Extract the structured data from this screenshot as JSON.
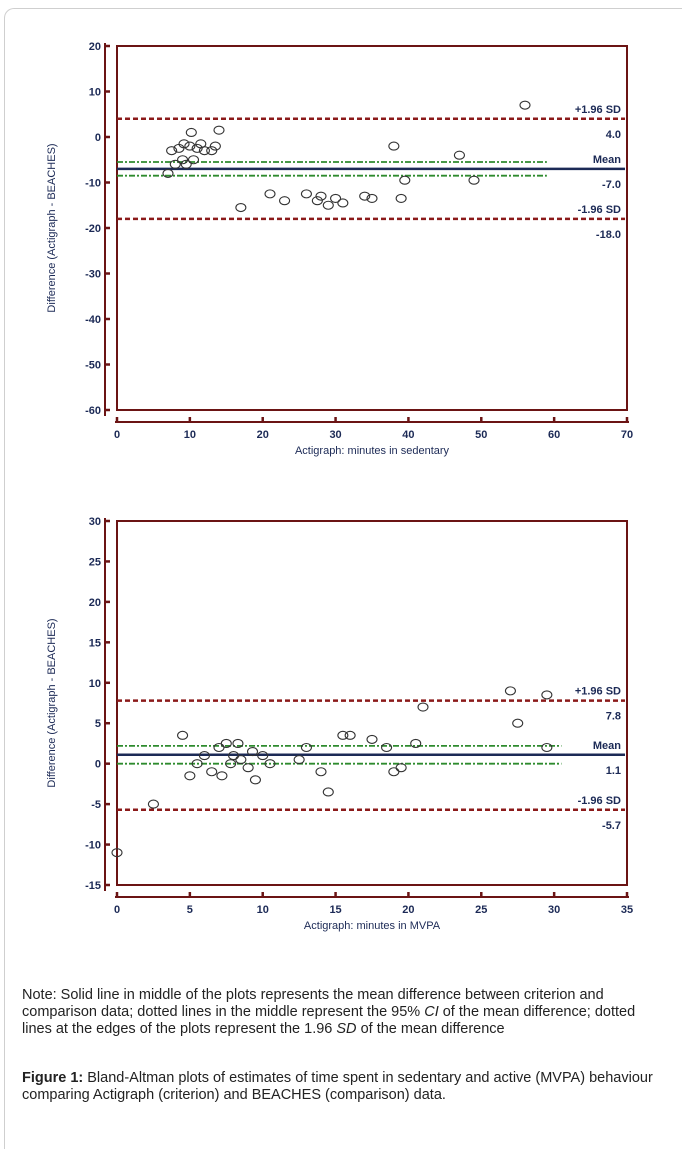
{
  "chart_data": [
    {
      "type": "scatter",
      "title": "",
      "xlabel": "Actigraph: minutes in sedentary",
      "ylabel": "Difference (Actigraph - BEACHES)",
      "xlim": [
        0,
        70
      ],
      "ylim": [
        -60,
        20
      ],
      "xticks": [
        0,
        10,
        20,
        30,
        40,
        50,
        60,
        70
      ],
      "yticks": [
        20,
        10,
        0,
        -10,
        -20,
        -30,
        -40,
        -50,
        -60
      ],
      "grid": false,
      "points": [
        [
          7,
          -8
        ],
        [
          7.5,
          -3
        ],
        [
          8,
          -6
        ],
        [
          8.5,
          -2.5
        ],
        [
          9,
          -5
        ],
        [
          9.2,
          -1.5
        ],
        [
          9.5,
          -6
        ],
        [
          10,
          -2
        ],
        [
          10.2,
          1
        ],
        [
          10.5,
          -5
        ],
        [
          11,
          -2.5
        ],
        [
          11.5,
          -1.5
        ],
        [
          12,
          -3
        ],
        [
          13,
          -3
        ],
        [
          13.5,
          -2
        ],
        [
          14,
          1.5
        ],
        [
          17,
          -15.5
        ],
        [
          21,
          -12.5
        ],
        [
          23,
          -14
        ],
        [
          26,
          -12.5
        ],
        [
          27.5,
          -14
        ],
        [
          28,
          -13
        ],
        [
          29,
          -15
        ],
        [
          30,
          -13.5
        ],
        [
          31,
          -14.5
        ],
        [
          34,
          -13
        ],
        [
          35,
          -13.5
        ],
        [
          38,
          -2
        ],
        [
          39,
          -13.5
        ],
        [
          39.5,
          -9.5
        ],
        [
          47,
          -4
        ],
        [
          49,
          -9.5
        ],
        [
          56,
          7
        ]
      ],
      "lines": [
        {
          "label": "+1.96 SD",
          "value_label": "4.0",
          "y": 4.0,
          "style": "dashed-limit"
        },
        {
          "label": "Mean",
          "value_label": "-7.0",
          "y": -7.0,
          "style": "solid"
        },
        {
          "label": "-1.96 SD",
          "value_label": "-18.0",
          "y": -18.0,
          "style": "dashed-limit"
        },
        {
          "label": "",
          "value_label": "",
          "y": -5.5,
          "style": "ci"
        },
        {
          "label": "",
          "value_label": "",
          "y": -8.5,
          "style": "ci"
        }
      ],
      "line_xrange": [
        0,
        59
      ],
      "colors": {
        "limit": "#8b1a1a",
        "mean": "#1c2a56",
        "ci": "#2e8b2e",
        "frame": "#6b1414",
        "points": "#333333"
      }
    },
    {
      "type": "scatter",
      "title": "",
      "xlabel": "Actigraph: minutes in MVPA",
      "ylabel": "Difference (Actigraph - BEACHES)",
      "xlim": [
        0,
        35
      ],
      "ylim": [
        -15,
        30
      ],
      "xticks": [
        0,
        5,
        10,
        15,
        20,
        25,
        30,
        35
      ],
      "yticks": [
        30,
        25,
        20,
        15,
        10,
        5,
        0,
        -5,
        -10,
        -15
      ],
      "grid": false,
      "points": [
        [
          0,
          -11
        ],
        [
          2.5,
          -5
        ],
        [
          4.5,
          3.5
        ],
        [
          5,
          -1.5
        ],
        [
          5.5,
          0
        ],
        [
          6,
          1
        ],
        [
          6.5,
          -1
        ],
        [
          7,
          2
        ],
        [
          7.2,
          -1.5
        ],
        [
          7.5,
          2.5
        ],
        [
          7.8,
          0
        ],
        [
          8,
          1
        ],
        [
          8.3,
          2.5
        ],
        [
          8.5,
          0.5
        ],
        [
          9,
          -0.5
        ],
        [
          9.3,
          1.5
        ],
        [
          9.5,
          -2
        ],
        [
          10,
          1
        ],
        [
          10.5,
          0
        ],
        [
          12.5,
          0.5
        ],
        [
          13,
          2
        ],
        [
          14,
          -1
        ],
        [
          14.5,
          -3.5
        ],
        [
          15.5,
          3.5
        ],
        [
          16,
          3.5
        ],
        [
          17.5,
          3
        ],
        [
          18.5,
          2
        ],
        [
          19,
          -1
        ],
        [
          19.5,
          -0.5
        ],
        [
          20.5,
          2.5
        ],
        [
          21,
          7
        ],
        [
          27,
          9
        ],
        [
          27.5,
          5
        ],
        [
          29.5,
          8.5
        ],
        [
          29.5,
          2
        ]
      ],
      "lines": [
        {
          "label": "+1.96 SD",
          "value_label": "7.8",
          "y": 7.8,
          "style": "dashed-limit"
        },
        {
          "label": "Mean",
          "value_label": "1.1",
          "y": 1.1,
          "style": "solid"
        },
        {
          "label": "-1.96 SD",
          "value_label": "-5.7",
          "y": -5.7,
          "style": "dashed-limit"
        },
        {
          "label": "",
          "value_label": "",
          "y": 2.2,
          "style": "ci"
        },
        {
          "label": "",
          "value_label": "",
          "y": 0.0,
          "style": "ci"
        }
      ],
      "line_xrange": [
        0,
        30.5
      ],
      "colors": {
        "limit": "#8b1a1a",
        "mean": "#1c2a56",
        "ci": "#2e8b2e",
        "frame": "#6b1414",
        "points": "#333333"
      }
    }
  ],
  "note": {
    "text_before": "Note: Solid line in middle of the plots represents the mean difference between criterion and comparison data; dotted lines in the middle represent the 95% ",
    "ci": "CI",
    "text_middle": " of the mean difference; dotted lines at the edges of the plots represent the 1.96 ",
    "sd": "SD",
    "text_after": " of the mean difference"
  },
  "caption": {
    "label": "Figure 1:",
    "text": " Bland-Altman plots of estimates of time spent in sedentary and active (MVPA) behaviour comparing Actigraph (criterion) and BEACHES (comparison) data."
  }
}
